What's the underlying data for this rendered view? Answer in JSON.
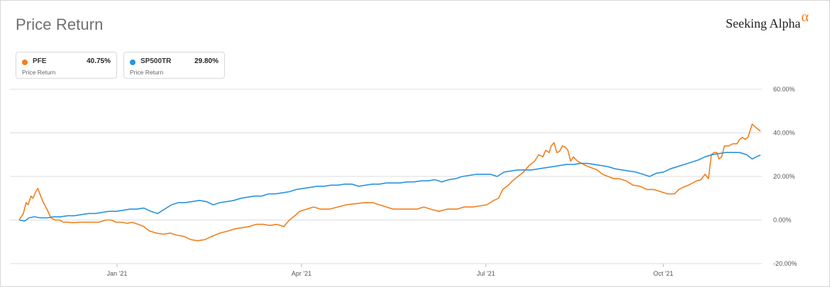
{
  "title": "Price Return",
  "brand": {
    "name": "Seeking Alpha",
    "mark": "α",
    "accent": "#f0801e"
  },
  "legend": [
    {
      "ticker": "PFE",
      "value": "40.75%",
      "sub": "Price Return",
      "color": "#f0801e"
    },
    {
      "ticker": "SP500TR",
      "value": "29.80%",
      "sub": "Price Return",
      "color": "#2a93e0"
    }
  ],
  "chart_data": {
    "type": "line",
    "y_ticks": [
      "60.00%",
      "40.00%",
      "20.00%",
      "0.00%",
      "-20.00%"
    ],
    "x_ticks": [
      "Jan '21",
      "Apr '21",
      "Jul '21",
      "Oct '21"
    ],
    "ylim": [
      -20,
      60
    ],
    "grid": true,
    "series": [
      {
        "name": "PFE",
        "color": "#f0801e",
        "points": [
          [
            0,
            0
          ],
          [
            6,
            3
          ],
          [
            10,
            8
          ],
          [
            13,
            7
          ],
          [
            17,
            11
          ],
          [
            20,
            10
          ],
          [
            24,
            13
          ],
          [
            27,
            14.5
          ],
          [
            31,
            11
          ],
          [
            35,
            8
          ],
          [
            40,
            5
          ],
          [
            46,
            1
          ],
          [
            52,
            0
          ],
          [
            58,
            0
          ],
          [
            64,
            -1
          ],
          [
            70,
            -1
          ],
          [
            78,
            -1.2
          ],
          [
            86,
            -1
          ],
          [
            95,
            -1
          ],
          [
            105,
            -1
          ],
          [
            115,
            -1
          ],
          [
            125,
            0
          ],
          [
            133,
            0
          ],
          [
            140,
            -1
          ],
          [
            148,
            -1
          ],
          [
            156,
            -1.5
          ],
          [
            163,
            -1
          ],
          [
            172,
            -2
          ],
          [
            180,
            -3
          ],
          [
            188,
            -5
          ],
          [
            198,
            -6
          ],
          [
            208,
            -6.5
          ],
          [
            218,
            -6
          ],
          [
            228,
            -7
          ],
          [
            238,
            -7.5
          ],
          [
            248,
            -9
          ],
          [
            258,
            -9.5
          ],
          [
            268,
            -9
          ],
          [
            278,
            -7.5
          ],
          [
            290,
            -6
          ],
          [
            302,
            -5
          ],
          [
            312,
            -4
          ],
          [
            322,
            -3.5
          ],
          [
            332,
            -3
          ],
          [
            342,
            -2
          ],
          [
            352,
            -2
          ],
          [
            362,
            -2.5
          ],
          [
            372,
            -2
          ],
          [
            382,
            -3
          ],
          [
            390,
            0
          ],
          [
            398,
            2
          ],
          [
            405,
            4
          ],
          [
            415,
            5
          ],
          [
            425,
            6
          ],
          [
            435,
            5
          ],
          [
            448,
            5
          ],
          [
            460,
            6
          ],
          [
            472,
            7
          ],
          [
            486,
            7.5
          ],
          [
            498,
            8
          ],
          [
            510,
            8
          ],
          [
            520,
            7
          ],
          [
            530,
            6
          ],
          [
            540,
            5
          ],
          [
            552,
            5
          ],
          [
            562,
            5
          ],
          [
            574,
            5
          ],
          [
            584,
            6
          ],
          [
            594,
            5
          ],
          [
            606,
            4
          ],
          [
            618,
            5
          ],
          [
            632,
            5
          ],
          [
            642,
            6
          ],
          [
            655,
            6
          ],
          [
            665,
            6.5
          ],
          [
            675,
            7
          ],
          [
            685,
            9
          ],
          [
            692,
            10
          ],
          [
            698,
            14
          ],
          [
            706,
            16
          ],
          [
            712,
            18
          ],
          [
            720,
            20
          ],
          [
            728,
            22
          ],
          [
            736,
            25
          ],
          [
            744,
            27
          ],
          [
            750,
            30
          ],
          [
            756,
            29
          ],
          [
            760,
            32
          ],
          [
            765,
            31
          ],
          [
            768,
            34
          ],
          [
            772,
            35.5
          ],
          [
            776,
            31
          ],
          [
            780,
            31.5
          ],
          [
            784,
            34
          ],
          [
            788,
            33.5
          ],
          [
            792,
            32
          ],
          [
            796,
            27
          ],
          [
            800,
            29
          ],
          [
            806,
            27
          ],
          [
            812,
            26
          ],
          [
            818,
            25
          ],
          [
            826,
            24
          ],
          [
            834,
            23
          ],
          [
            842,
            21
          ],
          [
            850,
            20
          ],
          [
            858,
            19
          ],
          [
            866,
            19
          ],
          [
            876,
            18
          ],
          [
            886,
            16
          ],
          [
            896,
            15.5
          ],
          [
            906,
            14
          ],
          [
            916,
            14
          ],
          [
            926,
            13
          ],
          [
            936,
            12
          ],
          [
            946,
            12
          ],
          [
            952,
            14
          ],
          [
            958,
            15
          ],
          [
            966,
            16
          ],
          [
            972,
            17
          ],
          [
            978,
            18
          ],
          [
            984,
            18.5
          ],
          [
            990,
            21
          ],
          [
            995,
            19
          ],
          [
            999,
            30
          ],
          [
            1003,
            31
          ],
          [
            1007,
            31
          ],
          [
            1010,
            28
          ],
          [
            1014,
            29
          ],
          [
            1018,
            34
          ],
          [
            1024,
            34
          ],
          [
            1030,
            35
          ],
          [
            1036,
            35
          ],
          [
            1040,
            37
          ],
          [
            1044,
            38
          ],
          [
            1048,
            37
          ],
          [
            1052,
            38
          ],
          [
            1058,
            44
          ],
          [
            1065,
            42
          ],
          [
            1070,
            40.75
          ]
        ]
      },
      {
        "name": "SP500TR",
        "color": "#2a93e0",
        "points": [
          [
            0,
            0
          ],
          [
            8,
            -0.5
          ],
          [
            14,
            1
          ],
          [
            22,
            1.5
          ],
          [
            30,
            1
          ],
          [
            40,
            1
          ],
          [
            50,
            1.5
          ],
          [
            60,
            1.5
          ],
          [
            70,
            2
          ],
          [
            80,
            2
          ],
          [
            90,
            2.5
          ],
          [
            100,
            3
          ],
          [
            110,
            3
          ],
          [
            120,
            3.5
          ],
          [
            130,
            4
          ],
          [
            140,
            4
          ],
          [
            150,
            4.5
          ],
          [
            160,
            5
          ],
          [
            170,
            5
          ],
          [
            180,
            5.5
          ],
          [
            190,
            4
          ],
          [
            200,
            3
          ],
          [
            210,
            5
          ],
          [
            220,
            7
          ],
          [
            230,
            8
          ],
          [
            240,
            8
          ],
          [
            250,
            8.5
          ],
          [
            260,
            9
          ],
          [
            270,
            8.5
          ],
          [
            280,
            7
          ],
          [
            290,
            8
          ],
          [
            300,
            8.5
          ],
          [
            310,
            9
          ],
          [
            320,
            10
          ],
          [
            330,
            10.5
          ],
          [
            340,
            11
          ],
          [
            350,
            11
          ],
          [
            360,
            12
          ],
          [
            370,
            12
          ],
          [
            380,
            12.5
          ],
          [
            390,
            13
          ],
          [
            400,
            14
          ],
          [
            410,
            14.5
          ],
          [
            420,
            15
          ],
          [
            430,
            15.5
          ],
          [
            440,
            15.5
          ],
          [
            450,
            16
          ],
          [
            460,
            16
          ],
          [
            470,
            16.5
          ],
          [
            480,
            16.5
          ],
          [
            490,
            15.5
          ],
          [
            500,
            16
          ],
          [
            510,
            16.5
          ],
          [
            520,
            16.5
          ],
          [
            530,
            17
          ],
          [
            540,
            17
          ],
          [
            550,
            17
          ],
          [
            560,
            17.5
          ],
          [
            570,
            17.5
          ],
          [
            580,
            18
          ],
          [
            590,
            18
          ],
          [
            600,
            18.5
          ],
          [
            610,
            17.5
          ],
          [
            620,
            18.5
          ],
          [
            630,
            19
          ],
          [
            640,
            20
          ],
          [
            650,
            20.5
          ],
          [
            660,
            21
          ],
          [
            670,
            21
          ],
          [
            680,
            21
          ],
          [
            690,
            20
          ],
          [
            700,
            22
          ],
          [
            710,
            22.5
          ],
          [
            720,
            23
          ],
          [
            730,
            23
          ],
          [
            740,
            23
          ],
          [
            750,
            23.5
          ],
          [
            760,
            24
          ],
          [
            770,
            24.5
          ],
          [
            780,
            25
          ],
          [
            790,
            25.5
          ],
          [
            800,
            25.5
          ],
          [
            810,
            26
          ],
          [
            820,
            26
          ],
          [
            830,
            25.5
          ],
          [
            840,
            25
          ],
          [
            850,
            24.5
          ],
          [
            860,
            23.5
          ],
          [
            870,
            23
          ],
          [
            880,
            22.5
          ],
          [
            890,
            22
          ],
          [
            900,
            21
          ],
          [
            910,
            20
          ],
          [
            920,
            21.5
          ],
          [
            930,
            22
          ],
          [
            940,
            23.5
          ],
          [
            950,
            24.5
          ],
          [
            960,
            25.5
          ],
          [
            970,
            26.5
          ],
          [
            980,
            27.5
          ],
          [
            990,
            29
          ],
          [
            1000,
            30
          ],
          [
            1010,
            30.5
          ],
          [
            1020,
            31
          ],
          [
            1030,
            31
          ],
          [
            1040,
            31
          ],
          [
            1050,
            30
          ],
          [
            1058,
            28
          ],
          [
            1064,
            29
          ],
          [
            1070,
            29.8
          ]
        ]
      }
    ]
  }
}
